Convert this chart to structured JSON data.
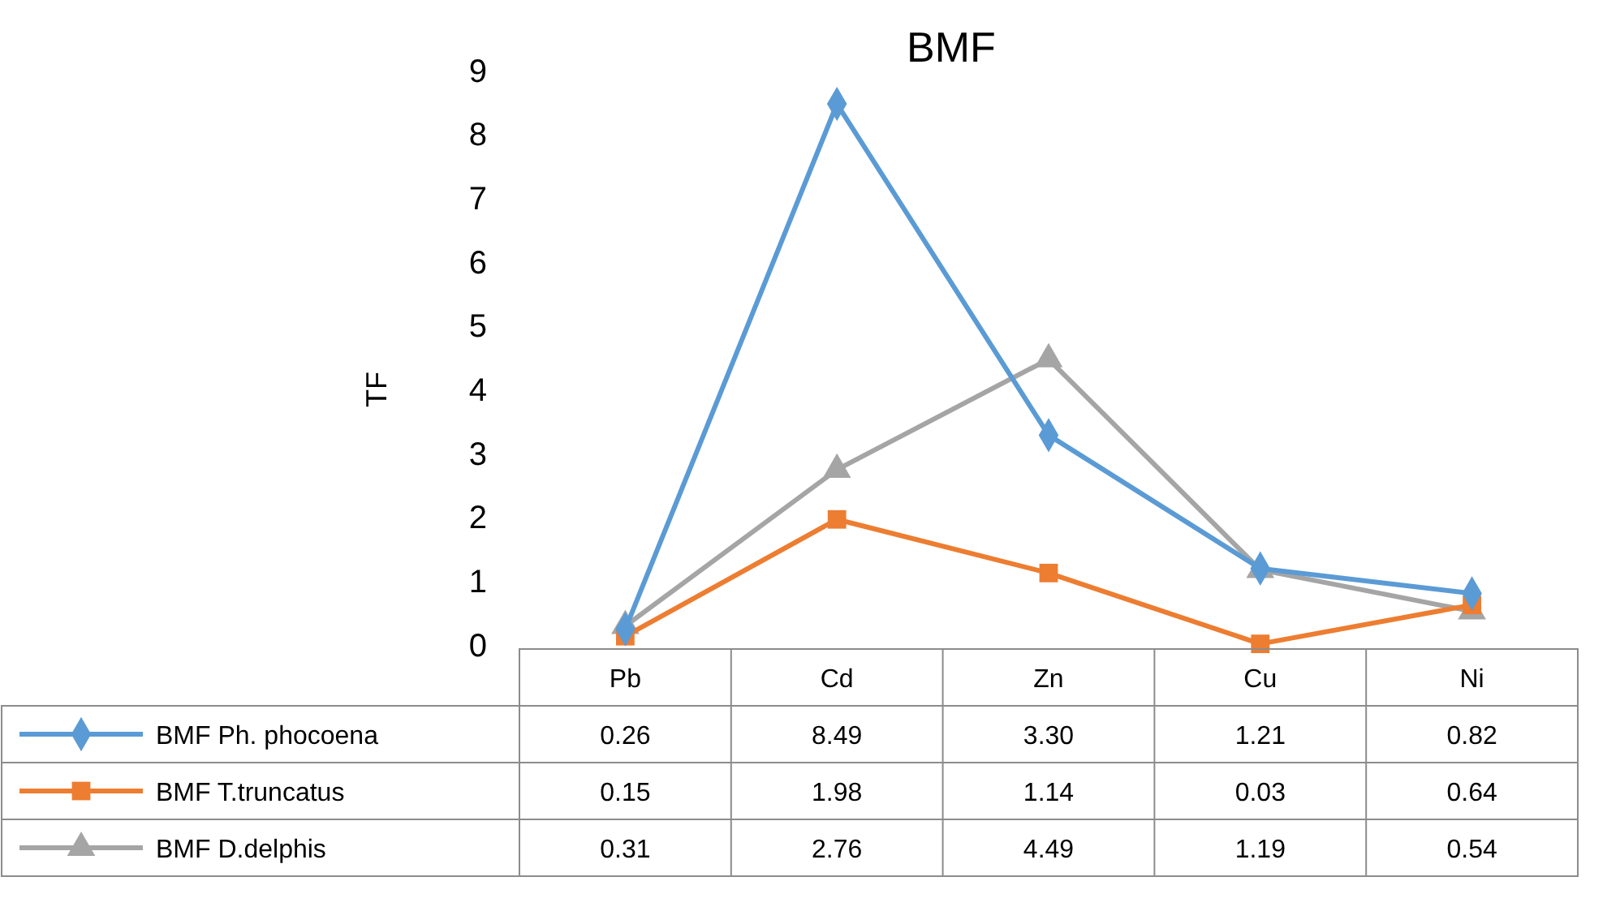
{
  "chart_data": {
    "type": "line",
    "title": "BMF",
    "ylabel": "TF",
    "categories": [
      "Pb",
      "Cd",
      "Zn",
      "Cu",
      "Ni"
    ],
    "ylim": [
      0,
      9
    ],
    "yticks": [
      0,
      1,
      2,
      3,
      4,
      5,
      6,
      7,
      8,
      9
    ],
    "grid": false,
    "legend": "bottom",
    "line_style": "solid",
    "series": [
      {
        "name": "BMF Ph. phocoena",
        "color": "#5b9bd5",
        "marker": "diamond",
        "values": [
          0.26,
          8.49,
          3.3,
          1.21,
          0.82
        ],
        "value_labels": [
          "0.26",
          "8.49",
          "3.30",
          "1.21",
          "0.82"
        ]
      },
      {
        "name": "BMF T.truncatus",
        "color": "#ed7d31",
        "marker": "square",
        "values": [
          0.15,
          1.98,
          1.14,
          0.03,
          0.64
        ],
        "value_labels": [
          "0.15",
          "1.98",
          "1.14",
          "0.03",
          "0.64"
        ]
      },
      {
        "name": "BMF D.delphis",
        "color": "#a5a5a5",
        "marker": "triangle",
        "values": [
          0.31,
          2.76,
          4.49,
          1.19,
          0.54
        ],
        "value_labels": [
          "0.31",
          "2.76",
          "4.49",
          "1.19",
          "0.54"
        ]
      }
    ]
  }
}
